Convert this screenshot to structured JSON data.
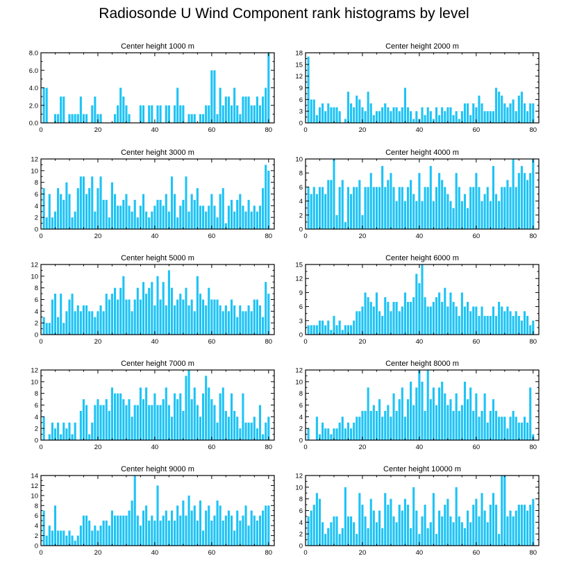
{
  "title": "Radiosonde U Wind Component rank histograms by level",
  "bar_color": "#1ec3f5",
  "chart_data": [
    {
      "type": "bar",
      "title": "Center height 1000 m",
      "xlim": [
        0,
        82
      ],
      "ylim": [
        0,
        8
      ],
      "yticks": [
        0,
        2,
        4,
        6,
        8
      ],
      "ytick_labels": [
        "0.0",
        "2.0",
        "4.0",
        "6.0",
        "8.0"
      ],
      "xticks": [
        0,
        20,
        40,
        60,
        80
      ],
      "values": [
        0,
        4,
        4,
        0,
        0,
        1,
        1,
        3,
        3,
        0,
        1,
        1,
        1,
        1,
        3,
        1,
        1,
        0,
        2,
        3,
        1,
        1,
        0,
        0,
        0,
        0,
        1,
        2,
        4,
        3,
        2,
        1,
        0,
        0,
        0,
        2,
        2,
        0,
        2,
        2,
        0,
        2,
        2,
        0,
        2,
        2,
        0,
        2,
        4,
        2,
        2,
        0,
        1,
        1,
        1,
        0,
        1,
        1,
        2,
        2,
        6,
        6,
        1,
        4,
        2,
        3,
        3,
        2,
        4,
        2,
        1,
        3,
        3,
        3,
        2,
        2,
        3,
        2,
        3,
        4,
        8
      ]
    },
    {
      "type": "bar",
      "title": "Center height 2000 m",
      "xlim": [
        0,
        82
      ],
      "ylim": [
        0,
        18
      ],
      "yticks": [
        0,
        3,
        6,
        9,
        12,
        15,
        18
      ],
      "ytick_labels": [
        "0",
        "3",
        "6",
        "9",
        "12",
        "15",
        "18"
      ],
      "xticks": [
        0,
        20,
        40,
        60,
        80
      ],
      "values": [
        0,
        17,
        6,
        6,
        2,
        4,
        5,
        3,
        5,
        4,
        4,
        4,
        3,
        0,
        1,
        8,
        5,
        4,
        7,
        6,
        4,
        3,
        8,
        5,
        2,
        3,
        3,
        4,
        5,
        4,
        3,
        4,
        4,
        3,
        4,
        9,
        4,
        3,
        1,
        3,
        1,
        4,
        2,
        4,
        3,
        1,
        4,
        2,
        4,
        3,
        4,
        4,
        2,
        3,
        1,
        3,
        5,
        5,
        2,
        5,
        4,
        7,
        5,
        3,
        3,
        3,
        3,
        9,
        8,
        7,
        5,
        4,
        5,
        6,
        3,
        7,
        8,
        5,
        3,
        5,
        5
      ]
    },
    {
      "type": "bar",
      "title": "Center height 3000 m",
      "xlim": [
        0,
        82
      ],
      "ylim": [
        0,
        12
      ],
      "yticks": [
        0,
        2,
        4,
        6,
        8,
        10,
        12
      ],
      "ytick_labels": [
        "0",
        "2",
        "4",
        "6",
        "8",
        "10",
        "12"
      ],
      "xticks": [
        0,
        20,
        40,
        60,
        80
      ],
      "values": [
        0,
        7,
        2,
        6,
        2,
        3,
        7,
        6,
        5,
        8,
        6,
        2,
        3,
        7,
        9,
        9,
        6,
        7,
        9,
        3,
        7,
        9,
        5,
        5,
        2,
        8,
        6,
        4,
        4,
        5,
        6,
        4,
        3,
        5,
        2,
        4,
        6,
        3,
        2,
        3,
        4,
        5,
        5,
        4,
        6,
        3,
        9,
        6,
        2,
        4,
        5,
        9,
        3,
        6,
        5,
        7,
        4,
        4,
        3,
        4,
        6,
        4,
        2,
        6,
        7,
        1,
        4,
        5,
        3,
        5,
        6,
        4,
        3,
        5,
        3,
        4,
        3,
        4,
        7,
        11,
        10
      ]
    },
    {
      "type": "bar",
      "title": "Center height 4000 m",
      "xlim": [
        0,
        82
      ],
      "ylim": [
        0,
        10
      ],
      "yticks": [
        0,
        2,
        4,
        6,
        8,
        10
      ],
      "ytick_labels": [
        "0",
        "2",
        "4",
        "6",
        "8",
        "10"
      ],
      "xticks": [
        0,
        20,
        40,
        60,
        80
      ],
      "values": [
        0,
        6,
        5,
        6,
        5,
        6,
        6,
        5,
        7,
        7,
        10,
        2,
        6,
        7,
        1,
        6,
        5,
        6,
        6,
        7,
        2,
        6,
        6,
        8,
        6,
        6,
        6,
        9,
        6,
        7,
        8,
        6,
        4,
        6,
        6,
        4,
        6,
        7,
        5,
        4,
        8,
        4,
        6,
        6,
        9,
        4,
        6,
        8,
        7,
        6,
        5,
        4,
        3,
        8,
        6,
        4,
        5,
        3,
        6,
        6,
        8,
        6,
        4,
        5,
        6,
        4,
        9,
        5,
        4,
        6,
        6,
        7,
        6,
        10,
        6,
        8,
        9,
        8,
        7,
        8,
        10
      ]
    },
    {
      "type": "bar",
      "title": "Center height 5000 m",
      "xlim": [
        0,
        82
      ],
      "ylim": [
        0,
        12
      ],
      "yticks": [
        0,
        2,
        4,
        6,
        8,
        10,
        12
      ],
      "ytick_labels": [
        "0",
        "2",
        "4",
        "6",
        "8",
        "10",
        "12"
      ],
      "xticks": [
        0,
        20,
        40,
        60,
        80
      ],
      "values": [
        0,
        3,
        2,
        2,
        6,
        7,
        3,
        7,
        2,
        4,
        6,
        7,
        4,
        5,
        4,
        5,
        5,
        4,
        4,
        3,
        4,
        5,
        4,
        7,
        6,
        7,
        8,
        6,
        8,
        10,
        6,
        6,
        4,
        6,
        8,
        6,
        9,
        7,
        8,
        9,
        5,
        10,
        6,
        9,
        5,
        11,
        8,
        5,
        6,
        7,
        6,
        8,
        5,
        6,
        4,
        10,
        7,
        6,
        5,
        8,
        6,
        6,
        6,
        5,
        4,
        5,
        4,
        6,
        5,
        3,
        5,
        4,
        4,
        5,
        4,
        6,
        6,
        5,
        3,
        9,
        7
      ]
    },
    {
      "type": "bar",
      "title": "Center height 6000 m",
      "xlim": [
        0,
        82
      ],
      "ylim": [
        0,
        15
      ],
      "yticks": [
        0,
        3,
        6,
        9,
        12,
        15
      ],
      "ytick_labels": [
        "0",
        "3",
        "6",
        "9",
        "12",
        "15"
      ],
      "xticks": [
        0,
        20,
        40,
        60,
        80
      ],
      "values": [
        0,
        2,
        2,
        2,
        2,
        3,
        3,
        2,
        3,
        1,
        4,
        2,
        3,
        1,
        2,
        2,
        2,
        3,
        5,
        5,
        6,
        9,
        8,
        7,
        6,
        9,
        5,
        4,
        8,
        7,
        5,
        7,
        7,
        5,
        6,
        9,
        7,
        7,
        8,
        13,
        11,
        15,
        8,
        6,
        6,
        7,
        8,
        9,
        7,
        10,
        6,
        9,
        7,
        6,
        4,
        9,
        6,
        7,
        5,
        6,
        6,
        4,
        6,
        4,
        4,
        4,
        6,
        4,
        7,
        6,
        5,
        6,
        5,
        4,
        5,
        4,
        3,
        5,
        4,
        2,
        3
      ]
    },
    {
      "type": "bar",
      "title": "Center height 7000 m",
      "xlim": [
        0,
        82
      ],
      "ylim": [
        0,
        12
      ],
      "yticks": [
        0,
        2,
        4,
        6,
        8,
        10,
        12
      ],
      "ytick_labels": [
        "0",
        "2",
        "4",
        "6",
        "8",
        "10",
        "12"
      ],
      "xticks": [
        0,
        20,
        40,
        60,
        80
      ],
      "values": [
        0,
        4,
        0,
        1,
        3,
        2,
        3,
        1,
        3,
        2,
        3,
        1,
        3,
        0,
        5,
        7,
        6,
        1,
        3,
        6,
        7,
        6,
        6,
        7,
        5,
        9,
        8,
        8,
        8,
        7,
        6,
        7,
        4,
        6,
        6,
        9,
        7,
        9,
        6,
        6,
        8,
        6,
        6,
        7,
        9,
        6,
        4,
        8,
        7,
        8,
        5,
        11,
        12,
        7,
        9,
        6,
        4,
        8,
        11,
        9,
        7,
        6,
        3,
        8,
        9,
        5,
        4,
        8,
        5,
        4,
        2,
        8,
        3,
        3,
        3,
        4,
        2,
        6,
        1,
        3,
        4
      ]
    },
    {
      "type": "bar",
      "title": "Center height 8000 m",
      "xlim": [
        0,
        82
      ],
      "ylim": [
        0,
        12
      ],
      "yticks": [
        0,
        2,
        4,
        6,
        8,
        10,
        12
      ],
      "ytick_labels": [
        "0",
        "2",
        "4",
        "6",
        "8",
        "10",
        "12"
      ],
      "xticks": [
        0,
        20,
        40,
        60,
        80
      ],
      "values": [
        0,
        2,
        0,
        0,
        4,
        1,
        3,
        2,
        2,
        1,
        2,
        2,
        3,
        4,
        2,
        3,
        2,
        3,
        4,
        4,
        5,
        5,
        9,
        5,
        6,
        5,
        7,
        4,
        5,
        6,
        4,
        8,
        5,
        7,
        9,
        4,
        7,
        10,
        6,
        9,
        12,
        10,
        5,
        12,
        7,
        9,
        6,
        9,
        10,
        8,
        6,
        7,
        5,
        8,
        5,
        6,
        10,
        7,
        9,
        5,
        8,
        4,
        5,
        8,
        3,
        5,
        7,
        5,
        4,
        4,
        4,
        2,
        4,
        5,
        4,
        3,
        3,
        4,
        3,
        9,
        1
      ]
    },
    {
      "type": "bar",
      "title": "Center height 9000 m",
      "xlim": [
        0,
        82
      ],
      "ylim": [
        0,
        14
      ],
      "yticks": [
        0,
        2,
        4,
        6,
        8,
        10,
        12,
        14
      ],
      "ytick_labels": [
        "0",
        "2",
        "4",
        "6",
        "8",
        "10",
        "12",
        "14"
      ],
      "xticks": [
        0,
        20,
        40,
        60,
        80
      ],
      "values": [
        0,
        7,
        2,
        4,
        3,
        8,
        3,
        3,
        3,
        2,
        3,
        2,
        1,
        2,
        4,
        6,
        6,
        5,
        3,
        4,
        3,
        4,
        5,
        5,
        4,
        7,
        6,
        6,
        6,
        6,
        6,
        7,
        9,
        14,
        6,
        4,
        7,
        8,
        5,
        6,
        5,
        12,
        5,
        6,
        7,
        5,
        7,
        5,
        8,
        6,
        9,
        6,
        10,
        7,
        8,
        5,
        9,
        3,
        7,
        8,
        5,
        6,
        9,
        8,
        5,
        6,
        7,
        6,
        3,
        7,
        5,
        6,
        8,
        4,
        7,
        6,
        5,
        6,
        7,
        8,
        8
      ]
    },
    {
      "type": "bar",
      "title": "Center height 10000 m",
      "xlim": [
        0,
        82
      ],
      "ylim": [
        0,
        12
      ],
      "yticks": [
        0,
        2,
        4,
        6,
        8,
        10,
        12
      ],
      "ytick_labels": [
        "0",
        "2",
        "4",
        "6",
        "8",
        "10",
        "12"
      ],
      "xticks": [
        0,
        20,
        40,
        60,
        80
      ],
      "values": [
        0,
        5,
        6,
        7,
        9,
        8,
        4,
        2,
        3,
        4,
        5,
        5,
        2,
        3,
        10,
        5,
        5,
        4,
        2,
        9,
        7,
        5,
        3,
        8,
        6,
        4,
        6,
        3,
        9,
        7,
        8,
        5,
        4,
        7,
        6,
        8,
        7,
        3,
        10,
        6,
        2,
        5,
        7,
        3,
        4,
        9,
        2,
        6,
        5,
        7,
        8,
        5,
        4,
        10,
        5,
        4,
        3,
        6,
        4,
        7,
        8,
        5,
        9,
        6,
        4,
        7,
        9,
        7,
        2,
        12,
        12,
        5,
        6,
        5,
        6,
        7,
        7,
        7,
        6,
        7,
        8
      ]
    }
  ]
}
